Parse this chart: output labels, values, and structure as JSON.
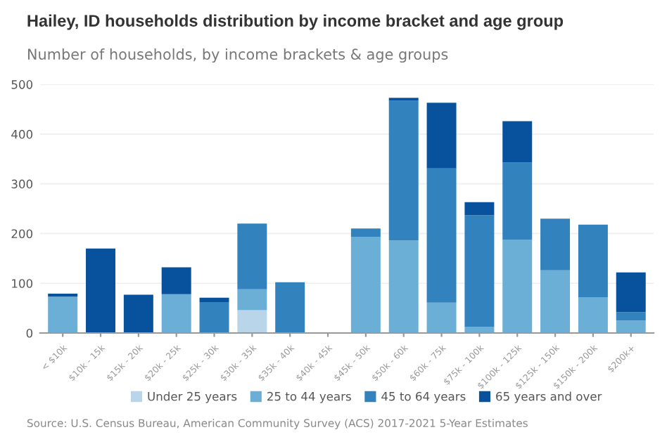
{
  "chart_data": {
    "type": "bar",
    "stacked": true,
    "title": "Hailey, ID households distribution by income bracket and age group",
    "subtitle": "Number of households, by income brackets & age groups",
    "categories": [
      "< $10k",
      "$10k - 15k",
      "$15k - 20k",
      "$20k - 25k",
      "$25k - 30k",
      "$30k - 35k",
      "$35k - 40k",
      "$40k - 45k",
      "$45k - 50k",
      "$50k - 60k",
      "$60k - 75k",
      "$75k - 100k",
      "$100k - 125k",
      "$125k - 150k",
      "$150k - 200k",
      "$200k+"
    ],
    "series": [
      {
        "name": "Under 25 years",
        "color": "#b9d5ea",
        "values": [
          0,
          0,
          0,
          0,
          0,
          46,
          0,
          0,
          0,
          0,
          0,
          0,
          0,
          0,
          0,
          0
        ]
      },
      {
        "name": "25 to 44 years",
        "color": "#6baed6",
        "values": [
          73,
          0,
          0,
          78,
          0,
          42,
          0,
          0,
          193,
          186,
          61,
          12,
          188,
          126,
          72,
          25
        ]
      },
      {
        "name": "45 to 64 years",
        "color": "#3182bd",
        "values": [
          0,
          0,
          0,
          0,
          62,
          132,
          102,
          0,
          17,
          281,
          270,
          225,
          155,
          104,
          146,
          17
        ]
      },
      {
        "name": "65 years and over",
        "color": "#08519c",
        "values": [
          6,
          170,
          77,
          54,
          9,
          0,
          0,
          0,
          0,
          6,
          132,
          26,
          83,
          0,
          0,
          80
        ]
      }
    ],
    "ylim": [
      0,
      500
    ],
    "yticks": [
      0,
      100,
      200,
      300,
      400,
      500
    ],
    "grid": "y",
    "legend": "bottom",
    "annotations": [
      "Source: U.S. Census Bureau, American Community Survey (ACS) 2017-2021 5-Year Estimates"
    ]
  }
}
